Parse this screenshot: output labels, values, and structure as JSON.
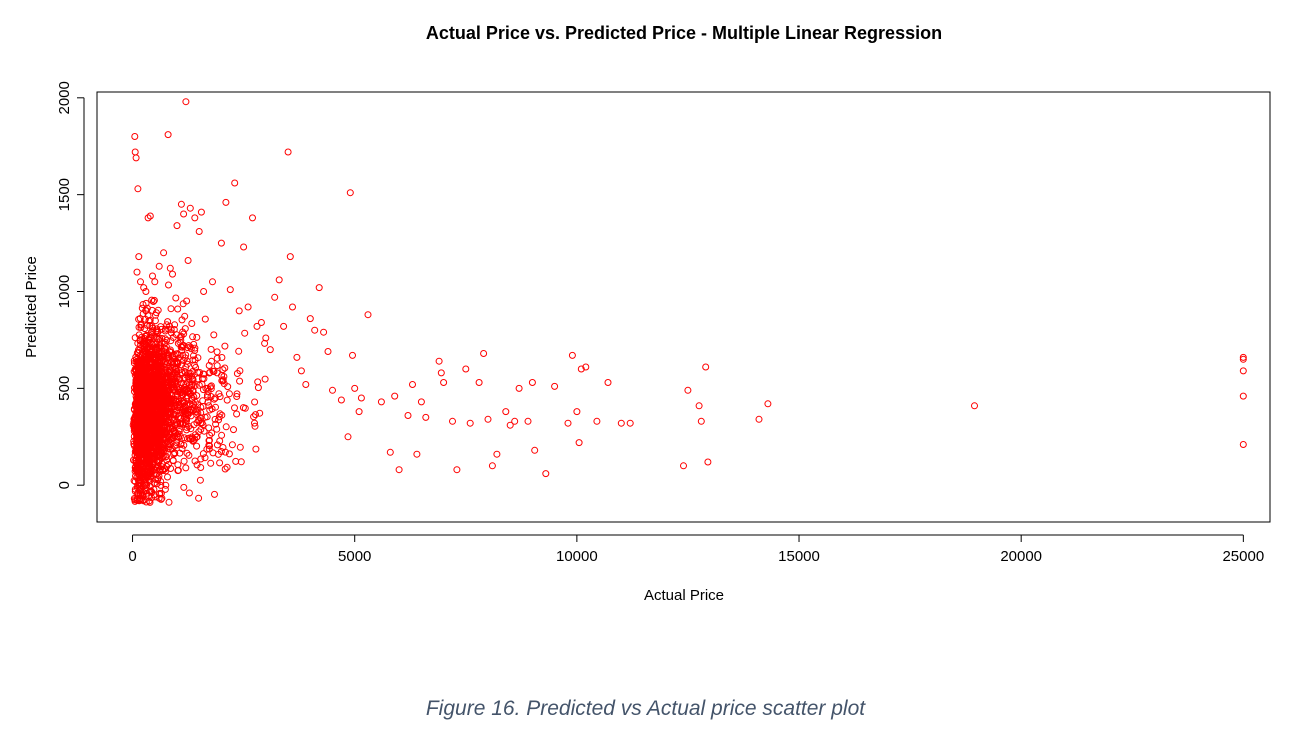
{
  "caption": "Figure 16. Predicted vs Actual price scatter plot",
  "chart_data": {
    "type": "scatter",
    "title": "Actual Price vs. Predicted Price - Multiple Linear Regression",
    "xlabel": "Actual Price",
    "ylabel": "Predicted Price",
    "xlim": [
      -800,
      25600
    ],
    "ylim": [
      -190,
      2030
    ],
    "xticks": [
      0,
      5000,
      10000,
      15000,
      20000,
      25000
    ],
    "xtick_labels": [
      "0",
      "5000",
      "10000",
      "15000",
      "20000",
      "25000"
    ],
    "yticks": [
      0,
      500,
      1000,
      1500,
      2000
    ],
    "ytick_labels": [
      "0",
      "500",
      "1000",
      "1500",
      "2000"
    ],
    "grid": false,
    "legend": "none",
    "marker": "open-circle",
    "color": "#ff0000",
    "series": [
      {
        "x": [
          50,
          60,
          80,
          120,
          140,
          100,
          180,
          250,
          300,
          350,
          400,
          450,
          500,
          600,
          700,
          800,
          850,
          900,
          1000,
          1100,
          1150,
          1200,
          1250,
          1300,
          1400,
          1500,
          1550,
          1600,
          1800,
          2000,
          2100,
          2200,
          2300,
          2400,
          2500,
          2600,
          2700,
          2800,
          2900,
          3000,
          3100,
          3200,
          3300,
          3400,
          3500,
          3550,
          3600,
          3700,
          3800,
          3900,
          4000,
          4100,
          4200,
          4300,
          4400,
          4500,
          4700,
          4850,
          4900,
          4950,
          5000,
          5100,
          5150,
          5300,
          5600,
          5800,
          5900,
          6000,
          6200,
          6300,
          6400,
          6500,
          6600,
          6900,
          6950,
          7000,
          7200,
          7300,
          7500,
          7600,
          7800,
          7900,
          8000,
          8100,
          8200,
          8400,
          8500,
          8600,
          8700,
          8900,
          9000,
          9050,
          9300,
          9500,
          9800,
          9900,
          10000,
          10050,
          10100,
          10200,
          10450,
          10700,
          11000,
          11200,
          12400,
          12500,
          12750,
          12800,
          12900,
          12950,
          14100,
          14300,
          18950,
          25000,
          25000,
          25000,
          25000,
          25000
        ],
        "y": [
          1800,
          1720,
          1690,
          1530,
          1180,
          1100,
          1050,
          1020,
          1000,
          1380,
          1390,
          1080,
          1050,
          1130,
          1200,
          1810,
          1120,
          1090,
          1340,
          1450,
          1400,
          1980,
          1160,
          1430,
          1380,
          1310,
          1410,
          1000,
          1050,
          1250,
          1460,
          1010,
          1560,
          900,
          1230,
          920,
          1380,
          820,
          840,
          760,
          700,
          970,
          1060,
          820,
          1720,
          1180,
          920,
          660,
          590,
          520,
          860,
          800,
          1020,
          790,
          690,
          490,
          440,
          250,
          1510,
          670,
          500,
          380,
          450,
          880,
          430,
          170,
          460,
          80,
          360,
          520,
          160,
          430,
          350,
          640,
          580,
          530,
          330,
          80,
          600,
          320,
          530,
          680,
          340,
          100,
          160,
          380,
          310,
          330,
          500,
          330,
          530,
          180,
          60,
          510,
          320,
          670,
          380,
          220,
          600,
          610,
          330,
          530,
          320,
          320,
          100,
          490,
          410,
          330,
          610,
          120,
          340,
          420,
          410,
          660,
          650,
          590,
          460,
          210
        ]
      }
    ]
  }
}
